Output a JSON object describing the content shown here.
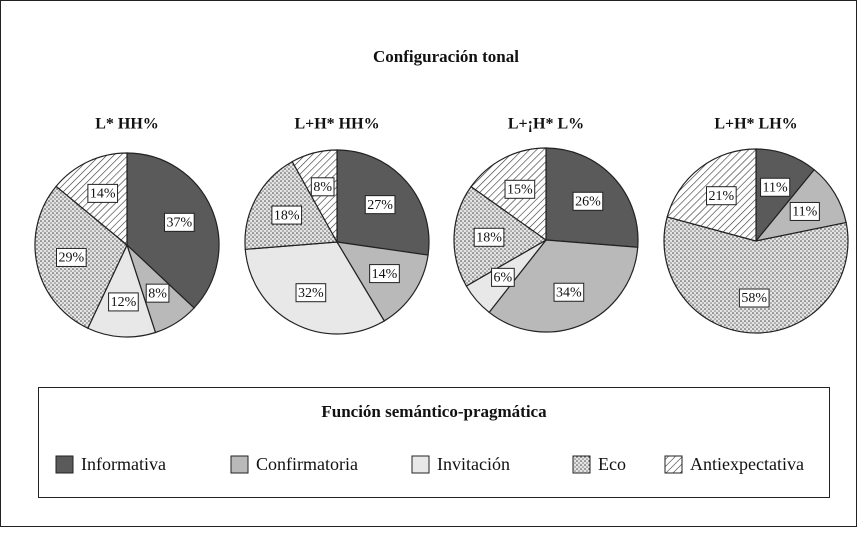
{
  "title": "Configuración tonal",
  "legend_title": "Función semántico-pragmática",
  "chart_data": [
    {
      "type": "pie",
      "title": "L* HH%",
      "categories": [
        "Informativa",
        "Confirmatoria",
        "Invitación",
        "Eco",
        "Antiexpectativa"
      ],
      "values": [
        37,
        8,
        12,
        29,
        14
      ],
      "value_labels": [
        "37%",
        "8%",
        "12%",
        "29%",
        "14%"
      ],
      "colors": [
        "#5a5a5a",
        "#b9b9b9",
        "#e8e8e8",
        "#e0e0e0",
        "#ffffff"
      ],
      "patterns": [
        "solid",
        "solid",
        "solid",
        "dots",
        "hatch"
      ]
    },
    {
      "type": "pie",
      "title": "L+H* HH%",
      "categories": [
        "Informativa",
        "Confirmatoria",
        "Invitación",
        "Eco",
        "Antiexpectativa"
      ],
      "values": [
        27,
        14,
        32,
        18,
        8
      ],
      "value_labels": [
        "27%",
        "14%",
        "32%",
        "18%",
        "8%"
      ],
      "colors": [
        "#5a5a5a",
        "#b9b9b9",
        "#e8e8e8",
        "#e0e0e0",
        "#ffffff"
      ],
      "patterns": [
        "solid",
        "solid",
        "solid",
        "dots",
        "hatch"
      ]
    },
    {
      "type": "pie",
      "title": "L+¡H* L%",
      "categories": [
        "Informativa",
        "Confirmatoria",
        "Invitación",
        "Eco",
        "Antiexpectativa"
      ],
      "values": [
        26,
        34,
        6,
        18,
        15
      ],
      "value_labels": [
        "26%",
        "34%",
        "6%",
        "18%",
        "15%"
      ],
      "colors": [
        "#5a5a5a",
        "#b9b9b9",
        "#e8e8e8",
        "#e0e0e0",
        "#ffffff"
      ],
      "patterns": [
        "solid",
        "solid",
        "solid",
        "dots",
        "hatch"
      ]
    },
    {
      "type": "pie",
      "title": "L+H* LH%",
      "categories": [
        "Informativa",
        "Confirmatoria",
        "Eco",
        "Antiexpectativa"
      ],
      "values": [
        11,
        11,
        58,
        21
      ],
      "value_labels": [
        "11%",
        "11%",
        "58%",
        "21%"
      ],
      "colors": [
        "#5a5a5a",
        "#b9b9b9",
        "#e0e0e0",
        "#ffffff"
      ],
      "patterns": [
        "solid",
        "solid",
        "dots",
        "hatch"
      ]
    }
  ]
}
